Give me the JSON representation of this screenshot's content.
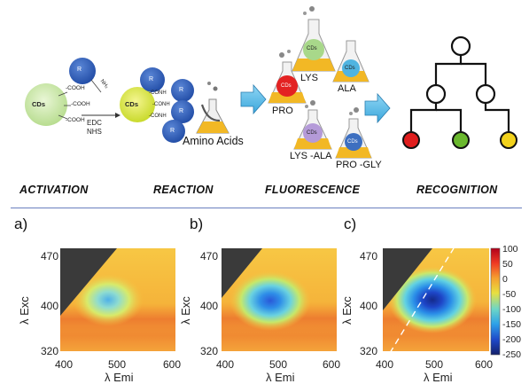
{
  "scheme": {
    "cd_label": "CDs",
    "r_label": "R",
    "cooh_groups": [
      "-COOH",
      "-COOH",
      "-COOH"
    ],
    "conh_groups": [
      "-CONH",
      "-CONH",
      "-CONH"
    ],
    "nh2_label": "NH₂",
    "reagents": [
      "EDC",
      "NHS"
    ],
    "amino_acids_label": "Amino Acids",
    "flasks": [
      {
        "label": "LYS",
        "cd": "CDs",
        "color": "#a8d88a"
      },
      {
        "label": "ALA",
        "cd": "CDs",
        "color": "#4fb4e0"
      },
      {
        "label": "PRO",
        "cd": "CDs",
        "color": "#e32222"
      },
      {
        "label": "LYS -ALA",
        "cd": "CDs",
        "color": "#b49ad8"
      },
      {
        "label": "PRO -GLY",
        "cd": "CDs",
        "color": "#3d6fc0"
      }
    ],
    "tree_leaf_colors": [
      "#e01e1e",
      "#6ab82e",
      "#f2d21c"
    ],
    "stages": [
      "ACTIVATION",
      "REACTION",
      "FLUORESCENCE",
      "RECOGNITION"
    ]
  },
  "panels": [
    {
      "letter": "a)",
      "ylabel": "λ Exc",
      "xlabel": "λ Emi",
      "yticks": [
        "470",
        "400",
        "320"
      ],
      "xticks": [
        "400",
        "500",
        "600"
      ]
    },
    {
      "letter": "b)",
      "ylabel": "λ Exc",
      "xlabel": "λ Emi",
      "yticks": [
        "470",
        "400",
        "320"
      ],
      "xticks": [
        "400",
        "500",
        "600"
      ]
    },
    {
      "letter": "c)",
      "ylabel": "λ Exc",
      "xlabel": "λ Emi",
      "yticks": [
        "470",
        "400",
        "320"
      ],
      "xticks": [
        "400",
        "500",
        "600"
      ]
    }
  ],
  "colorbar": {
    "ticks": [
      "100",
      "50",
      "0",
      "-50",
      "-100",
      "-150",
      "-200",
      "-250"
    ]
  }
}
